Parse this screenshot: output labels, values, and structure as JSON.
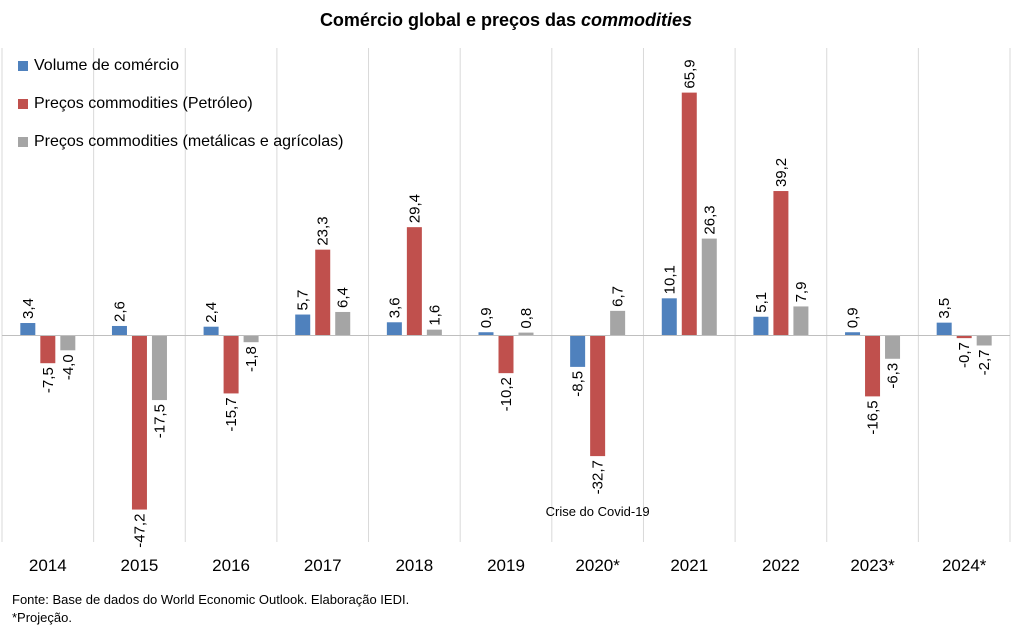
{
  "chart_data": {
    "type": "bar",
    "title_main": "Comércio global e preços das",
    "title_emph": "commodities",
    "categories": [
      "2014",
      "2015",
      "2016",
      "2017",
      "2018",
      "2019",
      "2020*",
      "2021",
      "2022",
      "2023*",
      "2024*"
    ],
    "series": [
      {
        "name": "Volume de comércio",
        "color": "#4F81BD",
        "values": [
          3.4,
          2.6,
          2.4,
          5.7,
          3.6,
          0.9,
          -8.5,
          10.1,
          5.1,
          0.9,
          3.5
        ],
        "labels": [
          "3,4",
          "2,6",
          "2,4",
          "5,7",
          "3,6",
          "0,9",
          "-8,5",
          "10,1",
          "5,1",
          "0,9",
          "3,5"
        ]
      },
      {
        "name": "Preços commodities (Petróleo)",
        "color": "#C0504D",
        "values": [
          -7.5,
          -47.2,
          -15.7,
          23.3,
          29.4,
          -10.2,
          -32.7,
          65.9,
          39.2,
          -16.5,
          -0.7
        ],
        "labels": [
          "-7,5",
          "-47,2",
          "-15,7",
          "23,3",
          "29,4",
          "-10,2",
          "-32,7",
          "65,9",
          "39,2",
          "-16,5",
          "-0,7"
        ]
      },
      {
        "name": "Preços commodities (metálicas e agrícolas)",
        "color": "#A5A5A5",
        "values": [
          -4.0,
          -17.5,
          -1.8,
          6.4,
          1.6,
          0.8,
          6.7,
          26.3,
          7.9,
          -6.3,
          -2.7
        ],
        "labels": [
          "-4,0",
          "-17,5",
          "-1,8",
          "6,4",
          "1,6",
          "0,8",
          "6,7",
          "26,3",
          "7,9",
          "-6,3",
          "-2,7"
        ]
      }
    ],
    "ylim": [
      -56.0,
      78.0
    ],
    "grid": "vertical",
    "legend_position": "top-left",
    "annotation": {
      "text": "Crise do Covid-19",
      "category": "2020*"
    },
    "value_label_orientation": "vertical"
  },
  "footer": {
    "source": "Fonte: Base de dados do World Economic Outlook. Elaboração IEDI.",
    "note": "*Projeção."
  }
}
